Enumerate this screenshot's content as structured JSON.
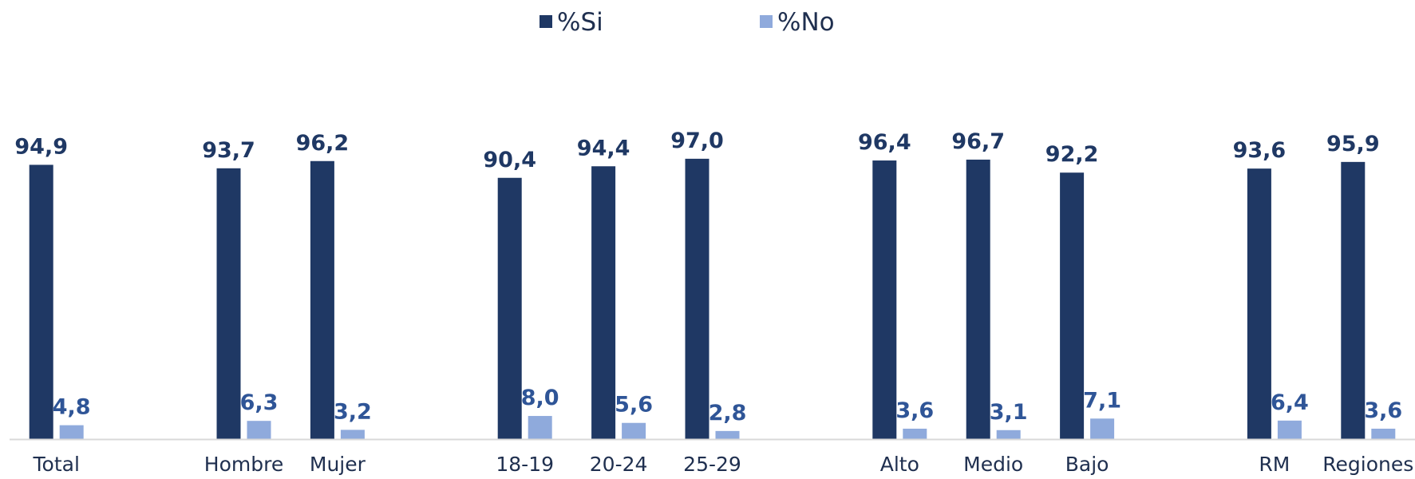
{
  "chart_data": {
    "type": "bar",
    "categories": [
      "Total",
      "",
      "Hombre",
      "Mujer",
      "",
      "18-19",
      "20-24",
      "25-29",
      "",
      "Alto",
      "Medio",
      "Bajo",
      "",
      "RM",
      "Regiones"
    ],
    "series": [
      {
        "name": "%Si",
        "color": "#1f3864",
        "label_color": "#1f3864",
        "values": [
          94.9,
          null,
          93.7,
          96.2,
          null,
          90.4,
          94.4,
          97.0,
          null,
          96.4,
          96.7,
          92.2,
          null,
          93.6,
          95.9
        ],
        "labels": [
          "94,9",
          "",
          "93,7",
          "96,2",
          "",
          "90,4",
          "94,4",
          "97,0",
          "",
          "96,4",
          "96,7",
          "92,2",
          "",
          "93,6",
          "95,9"
        ]
      },
      {
        "name": "%No",
        "color": "#8faadc",
        "label_color": "#2f5597",
        "values": [
          4.8,
          null,
          6.3,
          3.2,
          null,
          8.0,
          5.6,
          2.8,
          null,
          3.6,
          3.1,
          7.1,
          null,
          6.4,
          3.6
        ],
        "labels": [
          "4,8",
          "",
          "6,3",
          "3,2",
          "",
          "8,0",
          "5,6",
          "2,8",
          "",
          "3,6",
          "3,1",
          "7,1",
          "",
          "6,4",
          "3,6"
        ]
      }
    ],
    "ylim": [
      0,
      100
    ],
    "grid": false,
    "legend": "top-center",
    "axis_color": "#d9d9d9"
  }
}
